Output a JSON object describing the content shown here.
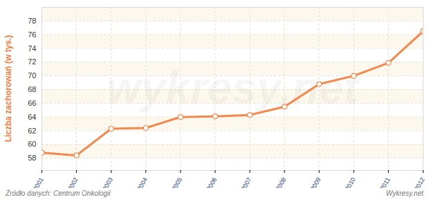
{
  "chart_data": {
    "type": "line",
    "y_label": "Liczba zachorowań (w tys.)",
    "x": [
      2001,
      2002,
      2003,
      2004,
      2005,
      2006,
      2007,
      2008,
      2009,
      2010,
      2011,
      2012
    ],
    "values": [
      58.8,
      58.4,
      62.3,
      62.4,
      64.0,
      64.1,
      64.3,
      65.5,
      68.8,
      70.0,
      71.9,
      76.5
    ],
    "color": "#f4874b",
    "marker": "circle",
    "xlim": [
      2001,
      2012
    ],
    "xticks": [
      2001,
      2002,
      2003,
      2004,
      2005,
      2006,
      2007,
      2008,
      2009,
      2010,
      2011,
      2012
    ],
    "ylim": [
      56.2,
      80
    ],
    "yticks": [
      58,
      60,
      62,
      64,
      66,
      68,
      70,
      72,
      74,
      76,
      78
    ],
    "grid": true,
    "watermark": "wykresy.net",
    "source": "Źródło danych: Centrum Onkologii",
    "credit": "Wykresy.net"
  }
}
